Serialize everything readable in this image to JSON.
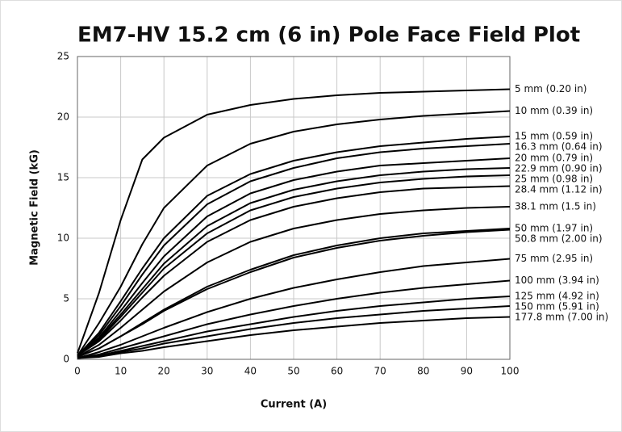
{
  "chart_data": {
    "type": "line",
    "title": "EM7-HV 15.2 cm (6 in) Pole Face Field Plot",
    "x_label": "Current (A)",
    "y_label": "Magnetic Field (kG)",
    "x": [
      0,
      5,
      10,
      15,
      20,
      30,
      40,
      50,
      60,
      70,
      80,
      90,
      100
    ],
    "xlim": [
      0,
      100
    ],
    "xticks": [
      0,
      10,
      20,
      30,
      40,
      50,
      60,
      70,
      80,
      90,
      100
    ],
    "ylim": [
      0,
      25
    ],
    "yticks": [
      0,
      5,
      10,
      15,
      20,
      25
    ],
    "grid": true,
    "color": "#000000",
    "series": [
      {
        "name": "5 mm (0.20 in)",
        "values": [
          0.5,
          5.5,
          11.5,
          16.5,
          18.3,
          20.2,
          21,
          21.5,
          21.8,
          22,
          22.1,
          22.2,
          22.3
        ]
      },
      {
        "name": "10 mm (0.39 in)",
        "values": [
          0.3,
          3,
          6,
          9.5,
          12.5,
          16,
          17.8,
          18.8,
          19.4,
          19.8,
          20.1,
          20.3,
          20.5
        ]
      },
      {
        "name": "15 mm (0.59 in)",
        "values": [
          0.3,
          2.2,
          4.8,
          7.5,
          10,
          13.5,
          15.3,
          16.4,
          17.1,
          17.6,
          17.9,
          18.2,
          18.4
        ]
      },
      {
        "name": "16.3 mm (0.64 in)",
        "values": [
          0.3,
          2,
          4.4,
          7,
          9.4,
          12.8,
          14.7,
          15.8,
          16.6,
          17.1,
          17.4,
          17.6,
          17.8
        ]
      },
      {
        "name": "20 mm (0.79 in)",
        "values": [
          0.3,
          1.8,
          4,
          6.3,
          8.5,
          11.8,
          13.7,
          14.8,
          15.5,
          16,
          16.2,
          16.4,
          16.6
        ]
      },
      {
        "name": "22.9 mm (0.90 in)",
        "values": [
          0.3,
          1.7,
          3.7,
          5.8,
          7.9,
          11,
          12.9,
          14,
          14.7,
          15.2,
          15.5,
          15.7,
          15.8
        ]
      },
      {
        "name": "25 mm (0.98 in)",
        "values": [
          0.3,
          1.6,
          3.5,
          5.5,
          7.5,
          10.4,
          12.3,
          13.4,
          14.1,
          14.6,
          14.9,
          15.1,
          15.2
        ]
      },
      {
        "name": "28.4 mm (1.12 in)",
        "values": [
          0.3,
          1.5,
          3.2,
          5.1,
          6.9,
          9.7,
          11.5,
          12.6,
          13.3,
          13.8,
          14.1,
          14.2,
          14.3
        ]
      },
      {
        "name": "38.1 mm (1.5 in)",
        "values": [
          0.2,
          1.2,
          2.6,
          4.1,
          5.6,
          8,
          9.7,
          10.8,
          11.5,
          12,
          12.3,
          12.5,
          12.6
        ]
      },
      {
        "name": "50 mm (1.97 in)",
        "values": [
          0.2,
          0.9,
          1.9,
          3,
          4.1,
          6,
          7.4,
          8.6,
          9.4,
          10,
          10.4,
          10.6,
          10.8
        ]
      },
      {
        "name": "50.8 mm (2.00 in)",
        "values": [
          0.2,
          0.9,
          1.9,
          2.9,
          4,
          5.8,
          7.2,
          8.4,
          9.2,
          9.8,
          10.2,
          10.5,
          10.7
        ]
      },
      {
        "name": "75 mm (2.95 in)",
        "values": [
          0.1,
          0.6,
          1.2,
          1.9,
          2.6,
          3.9,
          5,
          5.9,
          6.6,
          7.2,
          7.7,
          8,
          8.3
        ]
      },
      {
        "name": "100 mm (3.94 in)",
        "values": [
          0.1,
          0.4,
          0.9,
          1.4,
          1.9,
          2.9,
          3.7,
          4.4,
          5,
          5.5,
          5.9,
          6.2,
          6.5
        ]
      },
      {
        "name": "125 mm (4.92 in)",
        "values": [
          0.1,
          0.3,
          0.7,
          1.1,
          1.5,
          2.3,
          2.9,
          3.5,
          4,
          4.4,
          4.7,
          5,
          5.2
        ]
      },
      {
        "name": "150 mm (5.91 in)",
        "values": [
          0.1,
          0.3,
          0.6,
          0.9,
          1.3,
          1.9,
          2.5,
          3,
          3.4,
          3.7,
          4,
          4.2,
          4.4
        ]
      },
      {
        "name": "177.8 mm (7.00 in)",
        "values": [
          0.1,
          0.2,
          0.5,
          0.7,
          1,
          1.5,
          2,
          2.4,
          2.7,
          3,
          3.2,
          3.4,
          3.5
        ]
      }
    ]
  }
}
